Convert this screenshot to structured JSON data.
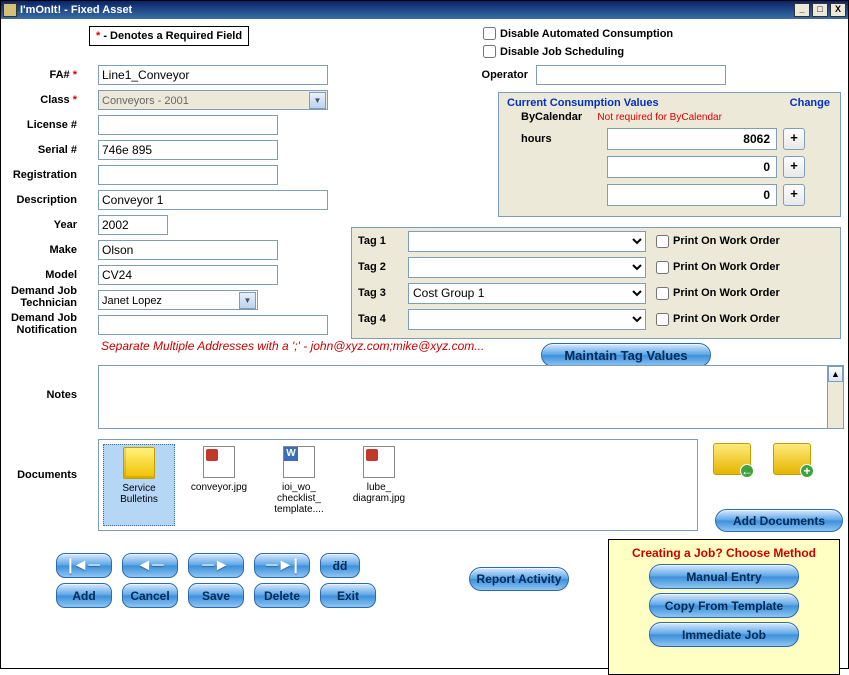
{
  "window": {
    "title": "I'mOnIt! - Fixed Asset"
  },
  "required_note": {
    "star": "*",
    "text": " - Denotes a Required Field"
  },
  "top_checks": {
    "disable_consumption": "Disable Automated Consumption",
    "disable_scheduling": "Disable Job Scheduling"
  },
  "fields": {
    "fa_lbl": "FA#",
    "fa_val": "Line1_Conveyor",
    "class_lbl": "Class",
    "class_val": "Conveyors - 2001",
    "license_lbl": "License #",
    "license_val": "",
    "serial_lbl": "Serial #",
    "serial_val": "746e 895",
    "reg_lbl": "Registration",
    "reg_val": "",
    "desc_lbl": "Description",
    "desc_val": "Conveyor 1",
    "year_lbl": "Year",
    "year_val": "2002",
    "make_lbl": "Make",
    "make_val": "Olson",
    "model_lbl": "Model",
    "model_val": "CV24",
    "djt_lbl": "Demand Job Technician",
    "djt_val": "Janet Lopez",
    "djn_lbl": "Demand Job Notification",
    "op_lbl": "Operator",
    "op_val": ""
  },
  "consumption": {
    "title": "Current Consumption Values",
    "change": "Change",
    "by_cal_lbl": "ByCalendar",
    "by_cal_note": "Not required for ByCalendar",
    "rows": [
      {
        "label": "hours",
        "value": "8062"
      },
      {
        "label": "",
        "value": "0"
      },
      {
        "label": "",
        "value": "0"
      }
    ],
    "plus": "+"
  },
  "tags": {
    "rows": [
      {
        "lbl": "Tag 1",
        "val": "",
        "print": "Print On Work Order"
      },
      {
        "lbl": "Tag 2",
        "val": "",
        "print": "Print On Work Order"
      },
      {
        "lbl": "Tag 3",
        "val": "Cost Group 1",
        "print": "Print On Work Order"
      },
      {
        "lbl": "Tag 4",
        "val": "",
        "print": "Print On Work Order"
      }
    ]
  },
  "helper": "Separate Multiple Addresses with a ';' - john@xyz.com;mike@xyz.com...",
  "maintain_tag": "Maintain Tag Values",
  "notes_lbl": "Notes",
  "docs_lbl": "Documents",
  "docs": {
    "items": [
      {
        "label": "Service Bulletins",
        "type": "folder"
      },
      {
        "label": "conveyor.jpg",
        "type": "img"
      },
      {
        "label": "ioi_wo_checklist_template....",
        "type": "word"
      },
      {
        "label": "lube_diagram.jpg",
        "type": "img"
      }
    ]
  },
  "add_docs": "Add Documents",
  "nav": {
    "first": "⇤",
    "prev": "←",
    "next": "→",
    "last": "⇥",
    "find": "👀"
  },
  "actions": {
    "add": "Add",
    "cancel": "Cancel",
    "save": "Save",
    "delete": "Delete",
    "exit": "Exit"
  },
  "report": "Report Activity",
  "job_box": {
    "title": "Creating a Job? Choose Method",
    "manual": "Manual Entry",
    "copy": "Copy From Template",
    "immediate": "Immediate Job"
  },
  "colors": {
    "titlebar": "#0a246a",
    "beige": "#ece9d8",
    "border": "#7f9db9",
    "link": "#0030c0",
    "red": "#d00",
    "yellow": "#ffffc4"
  }
}
